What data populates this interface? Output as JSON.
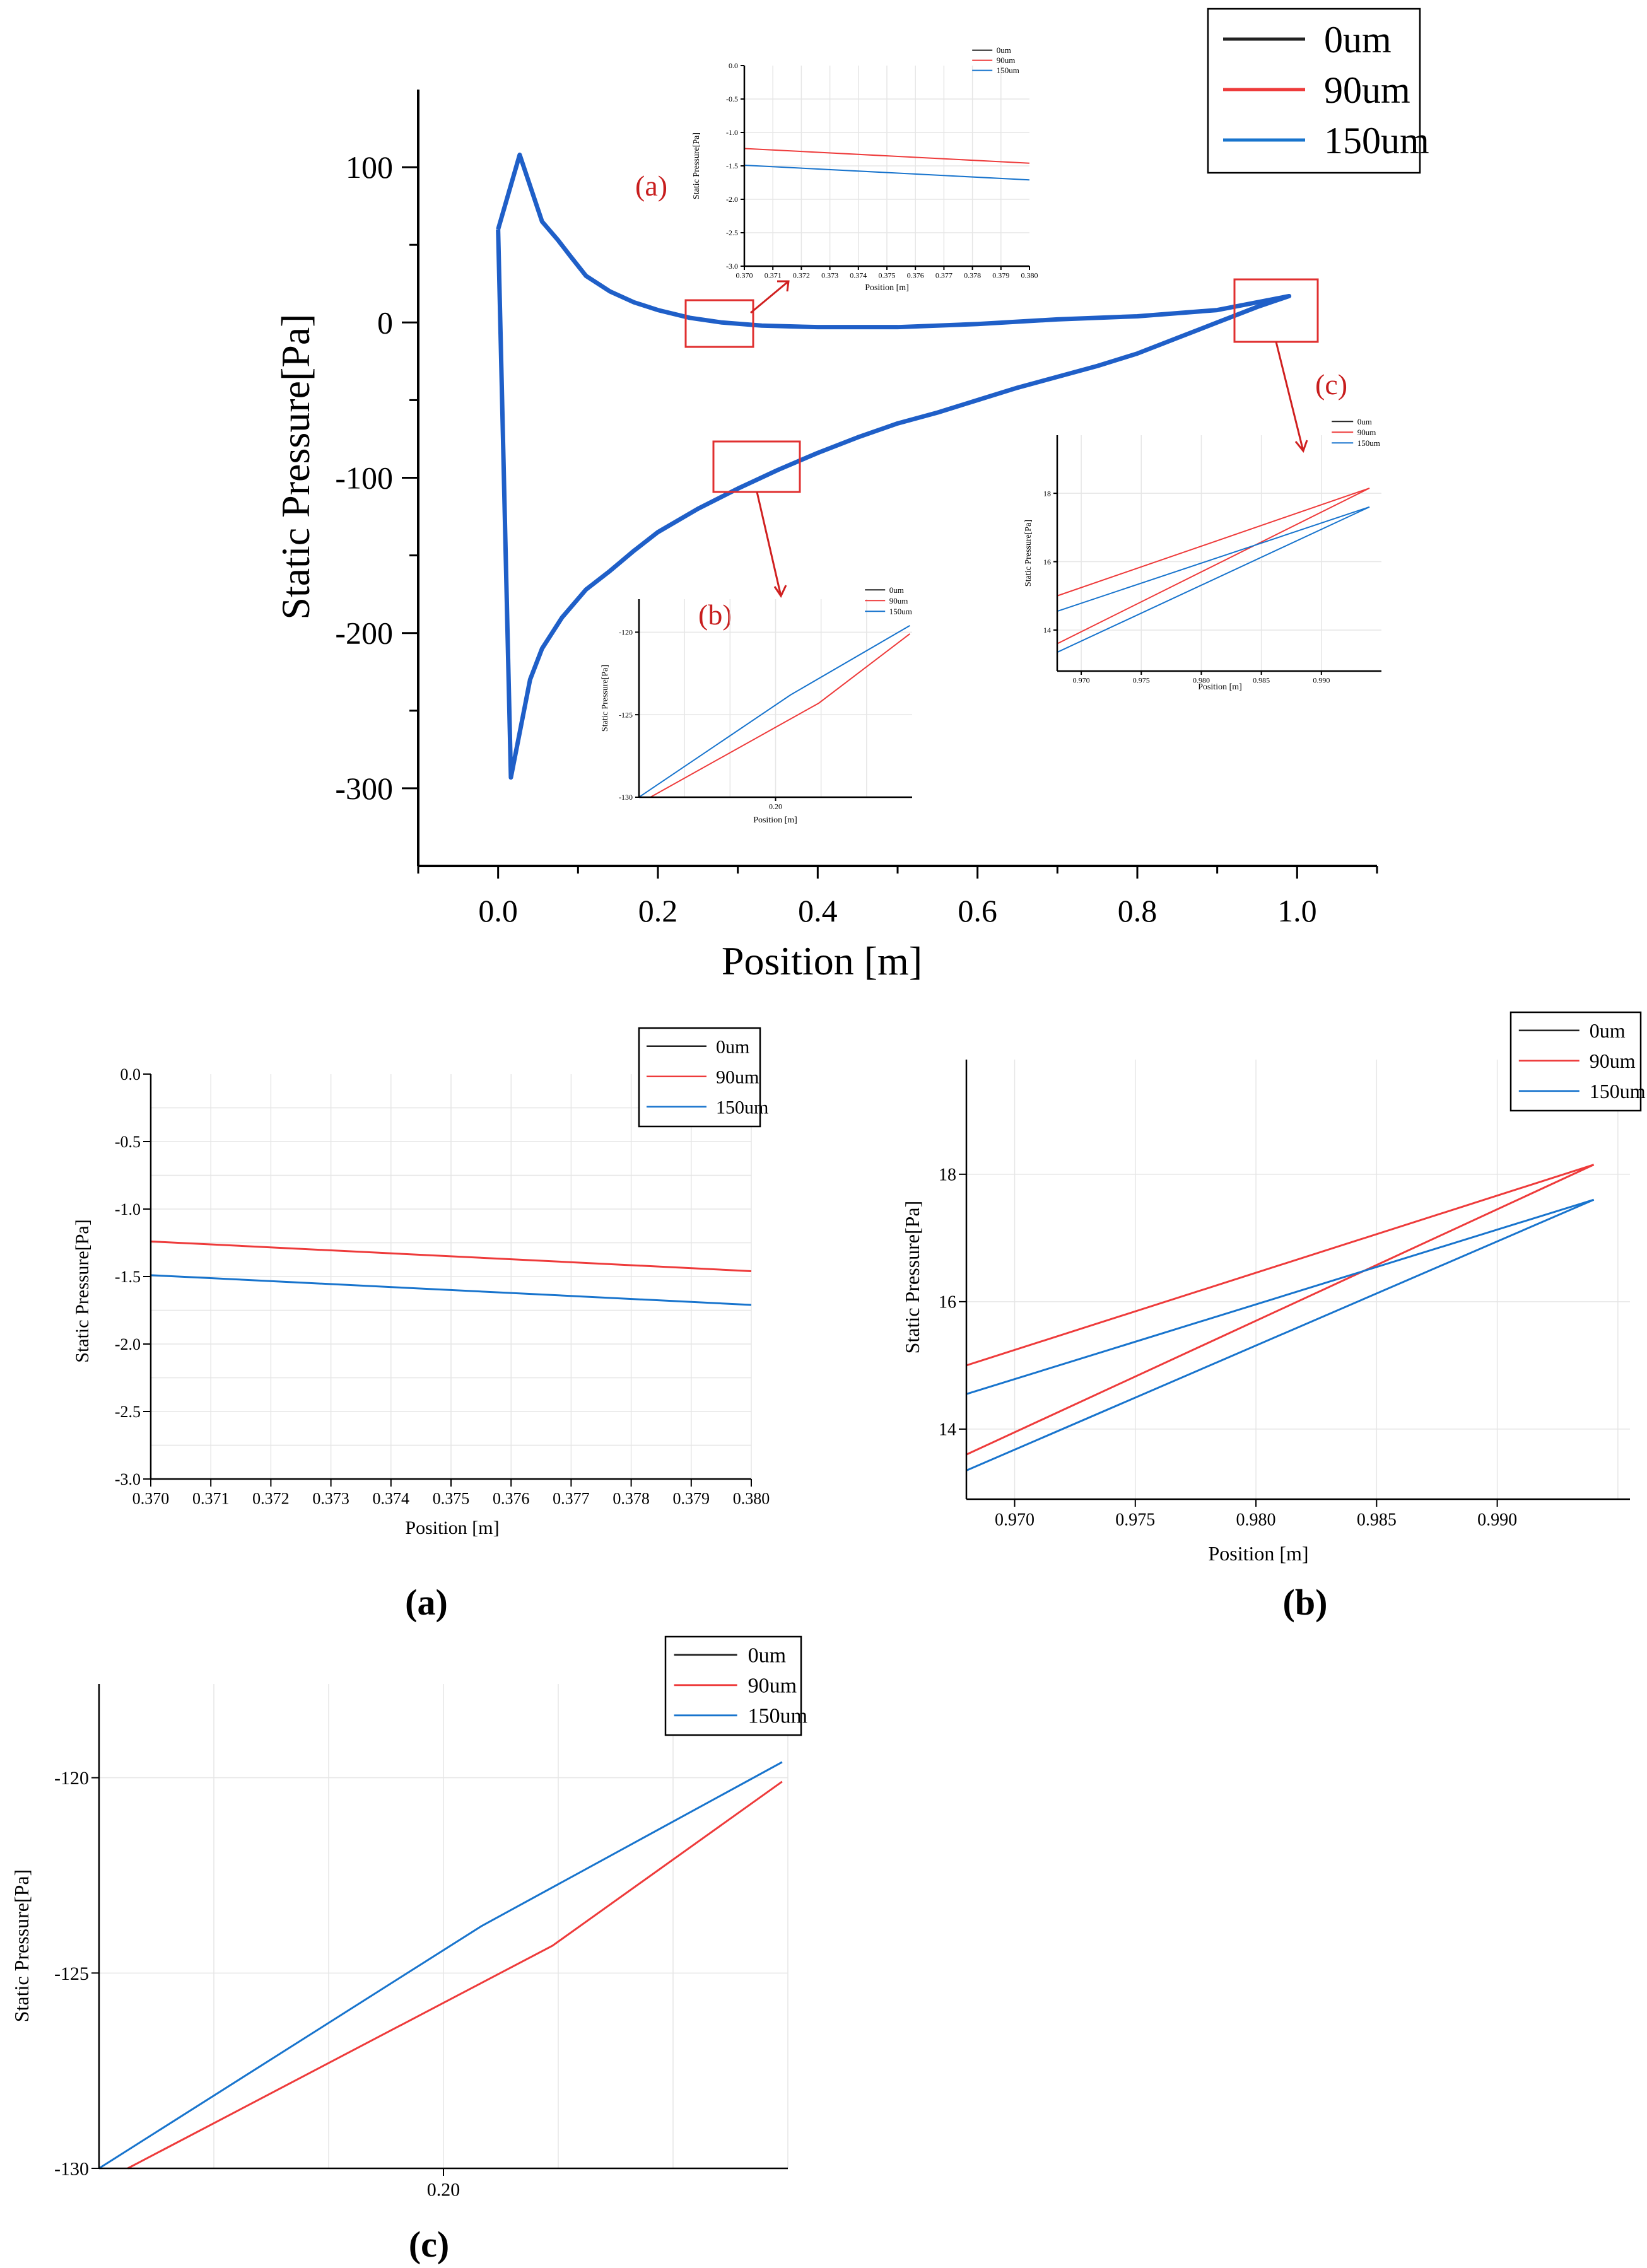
{
  "colors": {
    "s0": "#222222",
    "s90": "#ee3b3b",
    "s150": "#1874cd",
    "main_curve": "#1f5fc8",
    "annotation": "#c81e1e"
  },
  "chart_data": [
    {
      "id": "main",
      "type": "line",
      "xlabel": "Position [m]",
      "ylabel": "Static Pressure[Pa]",
      "xlim": [
        -0.1,
        1.1
      ],
      "ylim": [
        -350,
        150
      ],
      "xticks": [
        "0.0",
        "0.2",
        "0.4",
        "0.6",
        "0.8",
        "1.0"
      ],
      "yticks": [
        "100",
        "0",
        "-100",
        "-200",
        "-300"
      ],
      "legend": [
        "0um",
        "90um",
        "150um"
      ],
      "curve": {
        "x": [
          0.0,
          0.027,
          0.055,
          0.075,
          0.09,
          0.11,
          0.14,
          0.17,
          0.2,
          0.24,
          0.28,
          0.33,
          0.4,
          0.5,
          0.6,
          0.7,
          0.8,
          0.9,
          0.99,
          0.95,
          0.9,
          0.85,
          0.8,
          0.75,
          0.7,
          0.65,
          0.6,
          0.55,
          0.5,
          0.45,
          0.4,
          0.35,
          0.3,
          0.25,
          0.2,
          0.17,
          0.14,
          0.11,
          0.08,
          0.055,
          0.04,
          0.016,
          0.0
        ],
        "y": [
          60,
          108,
          65,
          53,
          43,
          30,
          20,
          13,
          8,
          3,
          0,
          -2,
          -3,
          -3,
          -1,
          2,
          4,
          8,
          17,
          10,
          0,
          -10,
          -20,
          -28,
          -35,
          -42,
          -50,
          -58,
          -65,
          -74,
          -84,
          -95,
          -107,
          -120,
          -135,
          -147,
          -160,
          -172,
          -190,
          -210,
          -230,
          -293,
          60
        ]
      },
      "annotations": [
        "(a)",
        "(b)",
        "(c)"
      ]
    },
    {
      "id": "inset-a-small",
      "type": "line",
      "xlabel": "Position [m]",
      "ylabel": "Static Pressure[Pa]",
      "xlim": [
        0.37,
        0.38
      ],
      "ylim": [
        -3.0,
        0.0
      ],
      "xticks": [
        "0.370",
        "0.371",
        "0.372",
        "0.373",
        "0.374",
        "0.375",
        "0.376",
        "0.377",
        "0.378",
        "0.379",
        "0.380"
      ],
      "yticks": [
        "0.0",
        "-0.5",
        "-1.0",
        "-1.5",
        "-2.0",
        "-2.5",
        "-3.0"
      ],
      "legend": [
        "0um",
        "90um",
        "150um"
      ],
      "series": [
        {
          "name": "90um",
          "x": [
            0.37,
            0.38
          ],
          "y": [
            -1.24,
            -1.46
          ]
        },
        {
          "name": "150um",
          "x": [
            0.37,
            0.38
          ],
          "y": [
            -1.49,
            -1.71
          ]
        }
      ]
    },
    {
      "id": "inset-b-small",
      "type": "line",
      "xlabel": "Position [m]",
      "ylabel": "Static Pressure[Pa]",
      "xlim": [
        0.17,
        0.23
      ],
      "ylim": [
        -130,
        -118
      ],
      "xticks": [
        "0.20"
      ],
      "yticks": [
        "-120",
        "-125",
        "-130"
      ],
      "legend": [
        "0um",
        "90um",
        "150um"
      ],
      "series": [
        {
          "name": "90um",
          "x": [
            0.1725,
            0.2095,
            0.2295
          ],
          "y": [
            -130,
            -124.3,
            -120.1
          ]
        },
        {
          "name": "150um",
          "x": [
            0.17,
            0.2033,
            0.2295
          ],
          "y": [
            -130,
            -123.8,
            -119.6
          ]
        }
      ]
    },
    {
      "id": "inset-c-small",
      "type": "line",
      "xlabel": "Position [m]",
      "ylabel": "Static Pressure[Pa]",
      "xlim": [
        0.968,
        0.995
      ],
      "ylim": [
        12.8,
        19.7
      ],
      "xticks": [
        "0.970",
        "0.975",
        "0.980",
        "0.985",
        "0.990"
      ],
      "yticks": [
        "14",
        "16",
        "18"
      ],
      "legend": [
        "0um",
        "90um",
        "150um"
      ],
      "series": [
        {
          "name": "90um-a",
          "x": [
            0.968,
            0.994
          ],
          "y": [
            15.0,
            18.15
          ]
        },
        {
          "name": "90um-b",
          "x": [
            0.968,
            0.994
          ],
          "y": [
            13.6,
            18.15
          ]
        },
        {
          "name": "150um-a",
          "x": [
            0.968,
            0.994
          ],
          "y": [
            14.55,
            17.6
          ]
        },
        {
          "name": "150um-b",
          "x": [
            0.968,
            0.994
          ],
          "y": [
            13.35,
            17.6
          ]
        }
      ]
    },
    {
      "id": "panel-a",
      "type": "line",
      "xlabel": "Position [m]",
      "ylabel": "Static Pressure[Pa]",
      "xlim": [
        0.37,
        0.38
      ],
      "ylim": [
        -3.0,
        0.0
      ],
      "xticks": [
        "0.370",
        "0.371",
        "0.372",
        "0.373",
        "0.374",
        "0.375",
        "0.376",
        "0.377",
        "0.378",
        "0.379",
        "0.380"
      ],
      "yticks": [
        "0.0",
        "-0.5",
        "-1.0",
        "-1.5",
        "-2.0",
        "-2.5",
        "-3.0"
      ],
      "legend": [
        "0um",
        "90um",
        "150um"
      ],
      "series": [
        {
          "name": "90um",
          "x": [
            0.37,
            0.38
          ],
          "y": [
            -1.24,
            -1.46
          ]
        },
        {
          "name": "150um",
          "x": [
            0.37,
            0.38
          ],
          "y": [
            -1.49,
            -1.71
          ]
        }
      ],
      "caption": "(a)"
    },
    {
      "id": "panel-b",
      "type": "line",
      "xlabel": "Position [m]",
      "ylabel": "Static Pressure[Pa]",
      "xlim": [
        0.968,
        0.9955
      ],
      "ylim": [
        12.9,
        19.8
      ],
      "xticks": [
        "0.970",
        "0.975",
        "0.980",
        "0.985",
        "0.990"
      ],
      "yticks": [
        "14",
        "16",
        "18"
      ],
      "legend": [
        "0um",
        "90um",
        "150um"
      ],
      "series": [
        {
          "name": "90um-a",
          "x": [
            0.968,
            0.994
          ],
          "y": [
            15.0,
            18.15
          ]
        },
        {
          "name": "90um-b",
          "x": [
            0.968,
            0.994
          ],
          "y": [
            13.6,
            18.15
          ]
        },
        {
          "name": "150um-a",
          "x": [
            0.968,
            0.994
          ],
          "y": [
            14.55,
            17.6
          ]
        },
        {
          "name": "150um-b",
          "x": [
            0.968,
            0.994
          ],
          "y": [
            13.35,
            17.6
          ]
        }
      ],
      "caption": "(b)"
    },
    {
      "id": "panel-c",
      "type": "line",
      "xlabel": "",
      "ylabel": "Static Pressure[Pa]",
      "xlim": [
        0.17,
        0.23
      ],
      "ylim": [
        -130,
        -117.6
      ],
      "xticks": [
        "0.20"
      ],
      "yticks": [
        "-120",
        "-125",
        "-130"
      ],
      "legend": [
        "0um",
        "90um",
        "150um"
      ],
      "series": [
        {
          "name": "90um",
          "x": [
            0.1725,
            0.2095,
            0.2295
          ],
          "y": [
            -130,
            -124.3,
            -120.1
          ]
        },
        {
          "name": "150um",
          "x": [
            0.17,
            0.2033,
            0.2295
          ],
          "y": [
            -130,
            -123.8,
            -119.6
          ]
        }
      ],
      "caption": "(c)"
    }
  ]
}
